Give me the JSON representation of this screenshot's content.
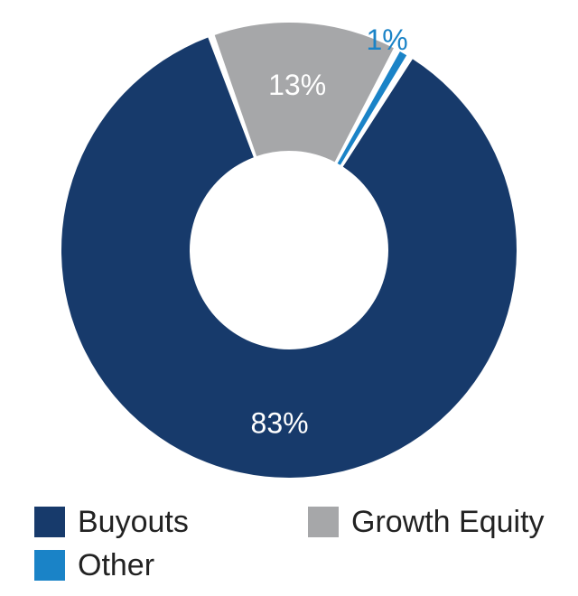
{
  "chart_data": {
    "type": "pie",
    "donut": true,
    "slices": [
      {
        "label": "Buyouts",
        "value": 83,
        "data_label": "83%",
        "color": "#173a6b",
        "label_color": "#ffffff"
      },
      {
        "label": "Growth Equity",
        "value": 13,
        "data_label": "13%",
        "color": "#a6a7a9",
        "label_color": "#ffffff"
      },
      {
        "label": "Other",
        "value": 1,
        "data_label": "1%",
        "color": "#1a83c7",
        "label_color": "#1a83c7"
      }
    ],
    "legend_position": "bottom"
  },
  "legend": {
    "items": [
      {
        "label": "Buyouts",
        "color": "#173a6b"
      },
      {
        "label": "Growth Equity",
        "color": "#a6a7a9"
      },
      {
        "label": "Other",
        "color": "#1a83c7"
      }
    ]
  }
}
